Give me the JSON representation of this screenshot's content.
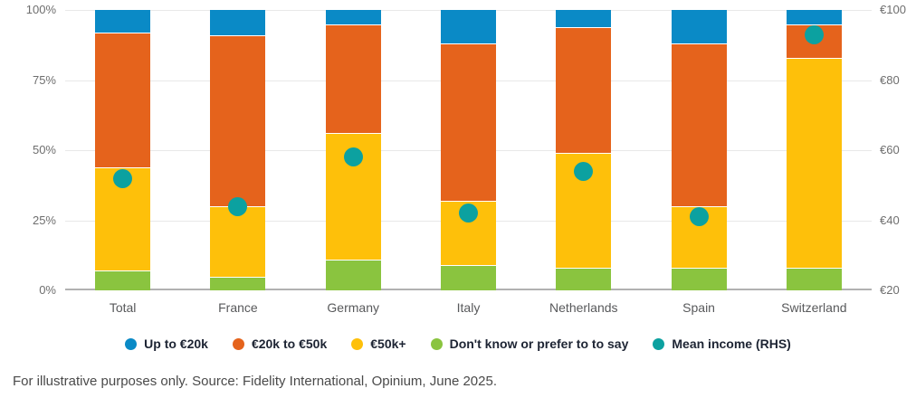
{
  "chart_data": {
    "type": "bar",
    "stacked": true,
    "categories": [
      "Total",
      "France",
      "Germany",
      "Italy",
      "Netherlands",
      "Spain",
      "Switzerland"
    ],
    "series": [
      {
        "name": "Up to €20k",
        "color": "#0A8AC6",
        "values": [
          8,
          9,
          5,
          12,
          6,
          12,
          5
        ]
      },
      {
        "name": "€20k to €50k",
        "color": "#E5631C",
        "values": [
          48,
          61,
          39,
          56,
          45,
          58,
          12
        ]
      },
      {
        "name": "€50k+",
        "color": "#FEC00A",
        "values": [
          37,
          25,
          45,
          23,
          41,
          22,
          75
        ]
      },
      {
        "name": "Don't know or prefer to to say",
        "color": "#8AC43F",
        "values": [
          7,
          5,
          11,
          9,
          8,
          8,
          8
        ]
      }
    ],
    "stack_order_bottom_to_top": [
      "Don't know or prefer to to say",
      "€50k+",
      "€20k to €50k",
      "Up to €20k"
    ],
    "mean_series": {
      "name": "Mean income (RHS)",
      "color": "#0CA1A0",
      "values": [
        52,
        44,
        58,
        42,
        54,
        41,
        93
      ]
    },
    "left_axis": {
      "ticks": [
        "0%",
        "25%",
        "50%",
        "75%",
        "100%"
      ],
      "min": 0,
      "max": 100
    },
    "right_axis": {
      "ticks": [
        "€20",
        "€40",
        "€60",
        "€80",
        "€100"
      ],
      "min": 20,
      "max": 100
    },
    "grid": true,
    "legend_position": "bottom"
  },
  "footer": {
    "text": "For illustrative purposes only. Source: Fidelity International, Opinium, June 2025."
  },
  "colors": {
    "background": "#FFFFFF",
    "gridline": "#E8E8E8",
    "baseline": "#B1B1B1",
    "axis_label": "#6E6E6E",
    "category_label": "#58595B",
    "legend_text": "#1D2433",
    "footer_text": "#4A4A4A",
    "segment_separator": "#FFFFFF"
  }
}
